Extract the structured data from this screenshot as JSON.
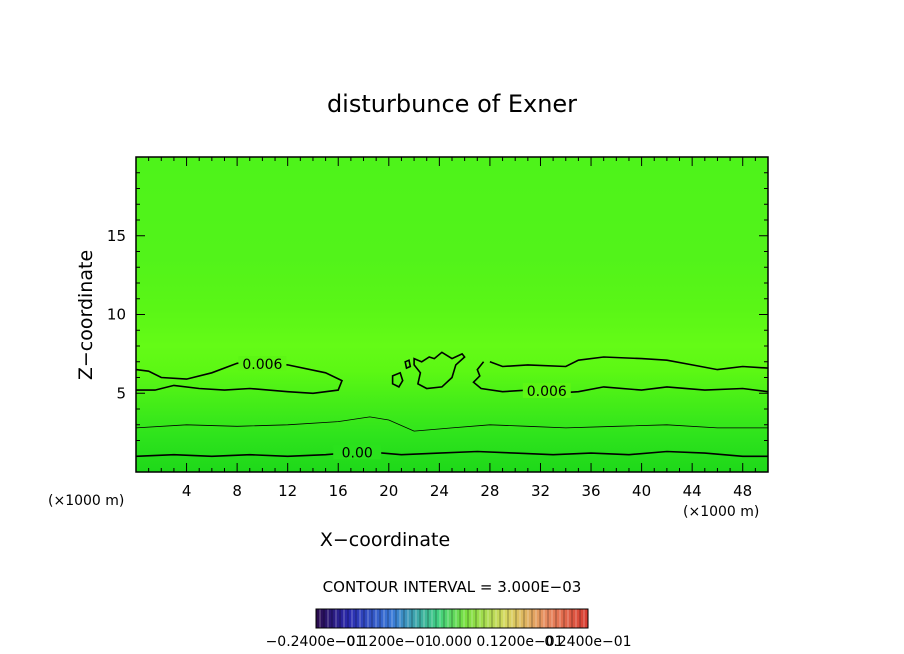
{
  "chart_data": {
    "type": "heatmap",
    "title": "disturbunce of Exner",
    "xlabel": "X−coordinate",
    "ylabel": "Z−coordinate",
    "x_unit": "(×1000 m)",
    "y_unit": "(×1000 m)",
    "xlim": [
      0,
      50
    ],
    "ylim": [
      0,
      20
    ],
    "x_ticks": [
      4,
      8,
      12,
      16,
      20,
      24,
      28,
      32,
      36,
      40,
      44,
      48
    ],
    "x_tick_labels": [
      "4",
      "8",
      "12",
      "16",
      "20",
      "24",
      "28",
      "32",
      "36",
      "40",
      "44",
      "48"
    ],
    "y_ticks": [
      5,
      10,
      15
    ],
    "y_tick_labels": [
      "5",
      "10",
      "15"
    ],
    "contour_interval_text": "CONTOUR INTERVAL = 3.000E−03",
    "contour_labels": [
      "0.006",
      "0.006",
      "0.00"
    ],
    "colorbar_labels": [
      "−0.2400e−01",
      "−0.1200e−01",
      "0.000",
      "0.1200e−01",
      "0.2400e−01"
    ],
    "colorbar_range": [
      -0.024,
      0.024
    ],
    "field_colors": {
      "surface": "#1ed81a",
      "low": "#33e81c",
      "mid": "#54f012",
      "band": "#5efa14",
      "top": "#4ef31a"
    },
    "contours": [
      {
        "level": 0.0,
        "points": [
          [
            0,
            1.0
          ],
          [
            3,
            1.1
          ],
          [
            6,
            1.0
          ],
          [
            9,
            1.1
          ],
          [
            12,
            1.0
          ],
          [
            15,
            1.1
          ],
          [
            18,
            1.3
          ],
          [
            21,
            1.1
          ],
          [
            24,
            1.2
          ],
          [
            27,
            1.3
          ],
          [
            30,
            1.2
          ],
          [
            33,
            1.1
          ],
          [
            36,
            1.2
          ],
          [
            39,
            1.1
          ],
          [
            42,
            1.3
          ],
          [
            45,
            1.2
          ],
          [
            48,
            1.0
          ],
          [
            50,
            1.0
          ]
        ]
      },
      {
        "level": 0.003,
        "points": [
          [
            0,
            2.8
          ],
          [
            4,
            3.0
          ],
          [
            8,
            2.9
          ],
          [
            12,
            3.0
          ],
          [
            16,
            3.2
          ],
          [
            18.5,
            3.5
          ],
          [
            20,
            3.3
          ],
          [
            22,
            2.6
          ],
          [
            25,
            2.8
          ],
          [
            28,
            3.0
          ],
          [
            31,
            2.9
          ],
          [
            34,
            2.8
          ],
          [
            38,
            2.9
          ],
          [
            42,
            3.0
          ],
          [
            46,
            2.8
          ],
          [
            50,
            2.8
          ]
        ]
      },
      {
        "level": 0.006,
        "closed": false,
        "points": [
          [
            0,
            6.5
          ],
          [
            1,
            6.4
          ],
          [
            2,
            6.0
          ],
          [
            4,
            5.9
          ],
          [
            6,
            6.3
          ],
          [
            8,
            6.9
          ],
          [
            10,
            7.0
          ],
          [
            12,
            6.8
          ],
          [
            15,
            6.3
          ],
          [
            16.3,
            5.8
          ],
          [
            16,
            5.2
          ],
          [
            14,
            5.0
          ],
          [
            12,
            5.1
          ],
          [
            9,
            5.3
          ],
          [
            7,
            5.2
          ],
          [
            5,
            5.3
          ],
          [
            3,
            5.5
          ],
          [
            1.5,
            5.2
          ],
          [
            0,
            5.2
          ]
        ]
      },
      {
        "level": 0.006,
        "closed": false,
        "points": [
          [
            27.5,
            7.0
          ],
          [
            27.0,
            6.5
          ],
          [
            27.2,
            6.1
          ],
          [
            26.7,
            5.7
          ],
          [
            27.3,
            5.3
          ],
          [
            29,
            5.1
          ],
          [
            31,
            5.2
          ],
          [
            33,
            5.0
          ],
          [
            35,
            5.1
          ],
          [
            37,
            5.4
          ],
          [
            40,
            5.2
          ],
          [
            42,
            5.4
          ],
          [
            45,
            5.2
          ],
          [
            48,
            5.3
          ],
          [
            50,
            5.1
          ]
        ]
      },
      {
        "level": 0.006,
        "closed": false,
        "points": [
          [
            28.0,
            7.0
          ],
          [
            29,
            6.7
          ],
          [
            31,
            6.8
          ],
          [
            34,
            6.7
          ],
          [
            35,
            7.1
          ],
          [
            37,
            7.3
          ],
          [
            40,
            7.2
          ],
          [
            42,
            7.1
          ],
          [
            44,
            6.8
          ],
          [
            46,
            6.5
          ],
          [
            48,
            6.7
          ],
          [
            50,
            6.6
          ]
        ]
      },
      {
        "level": 0.006,
        "closed": true,
        "points": [
          [
            22.0,
            7.2
          ],
          [
            22.6,
            7.0
          ],
          [
            23.2,
            7.3
          ],
          [
            23.6,
            7.2
          ],
          [
            24.2,
            7.6
          ],
          [
            25.0,
            7.2
          ],
          [
            25.8,
            7.5
          ],
          [
            26.0,
            7.3
          ],
          [
            25.3,
            6.8
          ],
          [
            25.0,
            6.0
          ],
          [
            24.2,
            5.4
          ],
          [
            23.0,
            5.3
          ],
          [
            22.3,
            5.6
          ],
          [
            22.5,
            6.3
          ],
          [
            22.0,
            6.8
          ]
        ]
      },
      {
        "level": 0.006,
        "closed": true,
        "points": [
          [
            20.3,
            6.1
          ],
          [
            20.9,
            6.3
          ],
          [
            21.1,
            5.8
          ],
          [
            20.8,
            5.4
          ],
          [
            20.3,
            5.6
          ]
        ]
      },
      {
        "level": 0.006,
        "closed": true,
        "points": [
          [
            21.3,
            7.0
          ],
          [
            21.6,
            7.1
          ],
          [
            21.7,
            6.7
          ],
          [
            21.4,
            6.6
          ]
        ]
      }
    ]
  }
}
